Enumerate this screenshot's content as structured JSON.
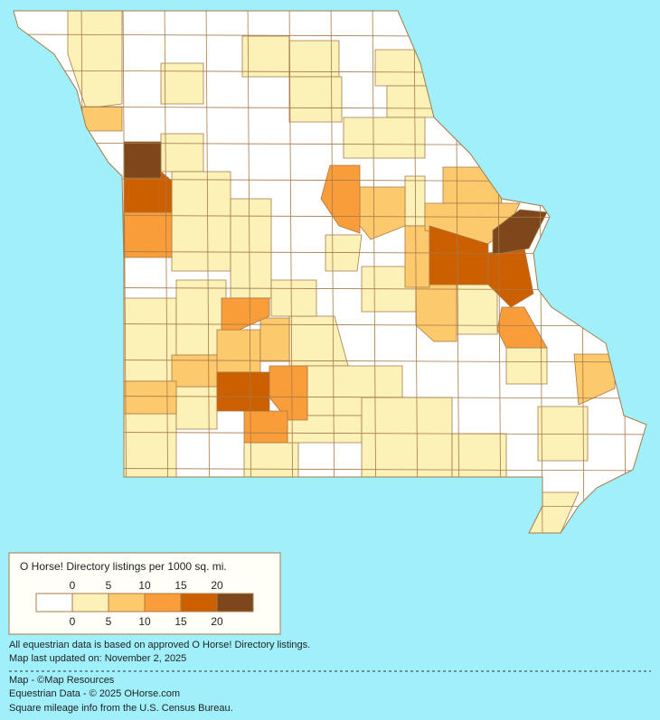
{
  "legend": {
    "title": "O Horse! Directory listings per 1000 sq. mi.",
    "ticks_top": [
      "0",
      "5",
      "10",
      "15",
      "20"
    ],
    "ticks_bottom": [
      "0",
      "5",
      "10",
      "15",
      "20"
    ],
    "colors": [
      "#ffffff",
      "#fcf1b7",
      "#fcc96c",
      "#f99d3a",
      "#cc5f00",
      "#7d461b"
    ]
  },
  "notes": [
    "All equestrian data is based on approved O Horse! Directory listings.",
    "Map last updated on: November 2, 2025"
  ],
  "credits": [
    "Map - ©Map Resources",
    "Equestrian Data - © 2025 OHorse.com",
    "Square mileage info from the U.S. Census Bureau."
  ]
}
